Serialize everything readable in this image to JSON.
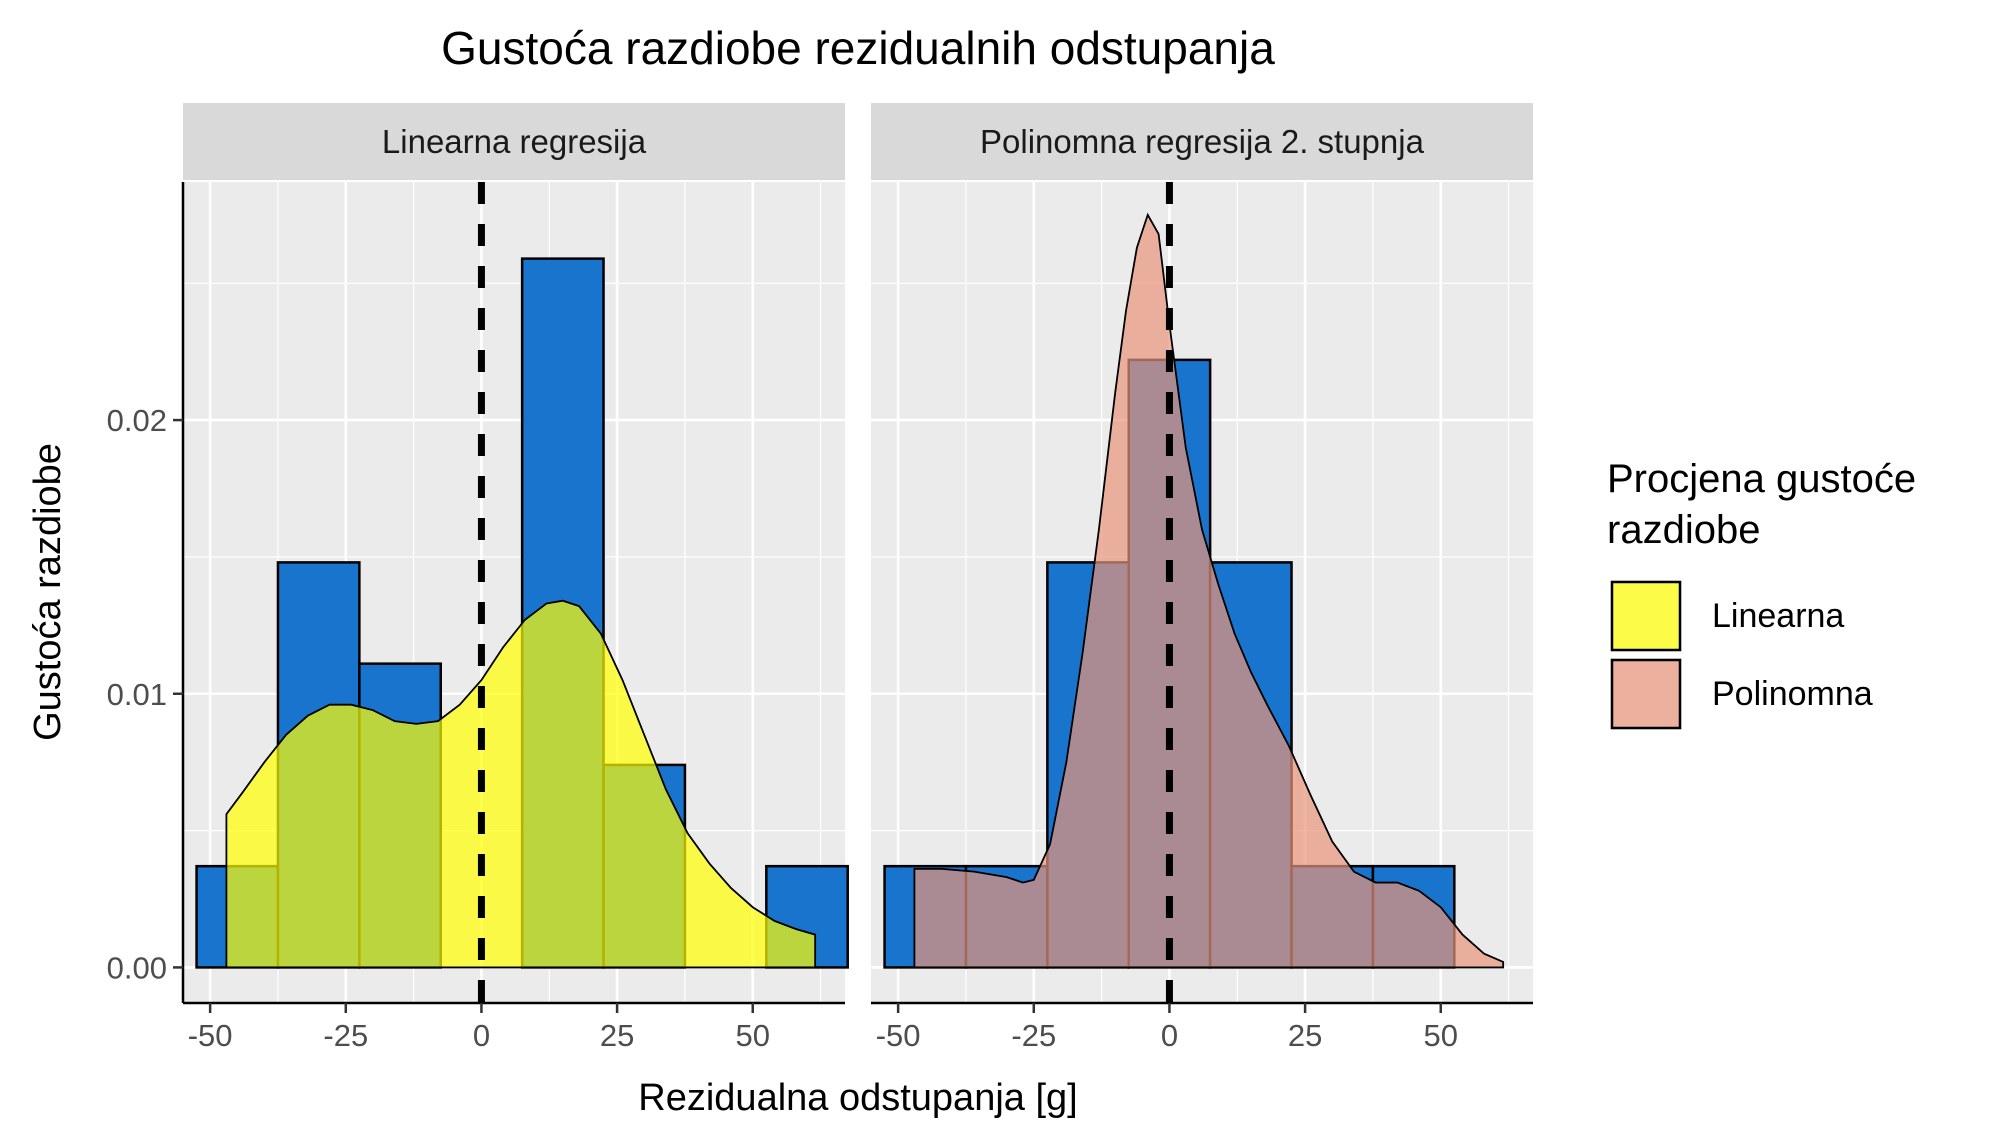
{
  "chart_data": {
    "type": "histogram-density-facet",
    "title": "Gustoća razdiobe rezidualnih odstupanja",
    "xlabel": "Rezidualna odstupanja [g]",
    "ylabel": "Gustoća razdiobe",
    "xlim": [
      -55,
      67
    ],
    "ylim": [
      -0.0013,
      0.0287
    ],
    "x_ticks": [
      -50,
      -25,
      0,
      25,
      50
    ],
    "x_tick_labels": [
      "-50",
      "-25",
      "0",
      "25",
      "50"
    ],
    "y_ticks": [
      0,
      0.01,
      0.02
    ],
    "y_tick_labels": [
      "0.00",
      "0.01",
      "0.02"
    ],
    "reference_line_x": 0,
    "legend": {
      "title_lines": [
        "Procjena gustoće",
        "razdiobe"
      ],
      "position": "right",
      "items": [
        {
          "label": "Linearna",
          "color": "#ffff00"
        },
        {
          "label": "Polinomna",
          "color": "#e9967a"
        }
      ]
    },
    "colors": {
      "histogram_fill": "#1874cd",
      "histogram_edge": "#000000",
      "panel_bg": "#ebebeb",
      "grid": "#ffffff",
      "strip_bg": "#d9d9d9",
      "linear_density": "#ffff00",
      "polynomial_density": "#e9967a"
    },
    "panels": [
      {
        "strip_label": "Linearna regresija",
        "histogram": {
          "bin_edges": [
            -52.5,
            -37.5,
            -22.5,
            -7.5,
            7.5,
            22.5,
            37.5,
            52.5,
            67.5
          ],
          "density": [
            0.0037,
            0.0148,
            0.0111,
            0.0,
            0.0259,
            0.0074,
            0.0,
            0.0037
          ]
        },
        "density_series": "Linearna",
        "density_curve": {
          "x": [
            -47,
            -44,
            -40,
            -36,
            -32,
            -28,
            -24,
            -20,
            -16,
            -12,
            -8,
            -4,
            0,
            4,
            8,
            12,
            15,
            18,
            22,
            26,
            30,
            34,
            38,
            42,
            46,
            50,
            54,
            58,
            61.5
          ],
          "y": [
            0.0056,
            0.0064,
            0.0075,
            0.0085,
            0.0092,
            0.0096,
            0.0096,
            0.0094,
            0.009,
            0.0089,
            0.009,
            0.0096,
            0.0105,
            0.0117,
            0.0127,
            0.0133,
            0.0134,
            0.0132,
            0.0122,
            0.0105,
            0.0085,
            0.0065,
            0.0049,
            0.0038,
            0.0029,
            0.0022,
            0.0017,
            0.0014,
            0.0012
          ]
        }
      },
      {
        "strip_label": "Polinomna regresija 2. stupnja",
        "histogram": {
          "bin_edges": [
            -52.5,
            -37.5,
            -22.5,
            -7.5,
            7.5,
            22.5,
            37.5,
            52.5
          ],
          "density": [
            0.0037,
            0.0037,
            0.0148,
            0.0222,
            0.0148,
            0.0037,
            0.0037
          ]
        },
        "density_series": "Polinomna",
        "density_curve": {
          "x": [
            -47,
            -42,
            -36,
            -30,
            -27,
            -25,
            -22,
            -19,
            -16,
            -13,
            -10,
            -8,
            -6,
            -4,
            -2,
            0,
            3,
            6,
            9,
            12,
            15,
            18,
            22,
            26,
            30,
            34,
            38,
            42,
            46,
            50,
            54,
            58,
            61.5
          ],
          "y": [
            0.0036,
            0.0036,
            0.0035,
            0.0033,
            0.0031,
            0.0032,
            0.0045,
            0.0075,
            0.0115,
            0.016,
            0.021,
            0.024,
            0.0263,
            0.0275,
            0.0268,
            0.0235,
            0.019,
            0.016,
            0.014,
            0.0122,
            0.0108,
            0.0096,
            0.0081,
            0.0063,
            0.0046,
            0.0035,
            0.0031,
            0.0031,
            0.0028,
            0.0022,
            0.0012,
            0.0005,
            0.0002
          ]
        }
      }
    ]
  }
}
